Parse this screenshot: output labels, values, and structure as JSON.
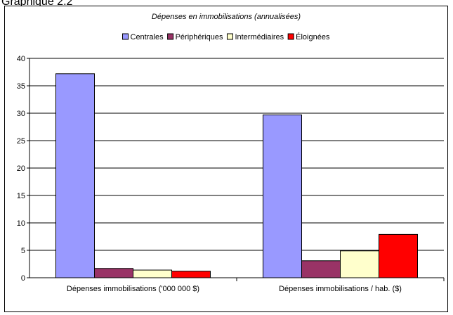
{
  "header": {
    "title": "Graphique 2.2"
  },
  "chart_data": {
    "type": "bar",
    "title": "Dépenses en immobilisations (annualisées)",
    "xlabel": "",
    "ylabel": "",
    "categories": [
      "Dépenses immobilisations ('000 000 $)",
      "Dépenses immobilisations / hab. ($)"
    ],
    "series": [
      {
        "name": "Centrales",
        "color": "#9999ff",
        "values": [
          37.2,
          29.7
        ]
      },
      {
        "name": "Périphériques",
        "color": "#993366",
        "values": [
          1.7,
          3.1
        ]
      },
      {
        "name": "Intermédiaires",
        "color": "#ffffcc",
        "values": [
          1.4,
          4.9
        ]
      },
      {
        "name": "Éloignées",
        "color": "#ff0000",
        "values": [
          1.2,
          7.9
        ]
      }
    ],
    "ylim": [
      0,
      40
    ],
    "yticks": [
      0,
      5,
      10,
      15,
      20,
      25,
      30,
      35,
      40
    ],
    "grid": true,
    "legend": "top"
  }
}
